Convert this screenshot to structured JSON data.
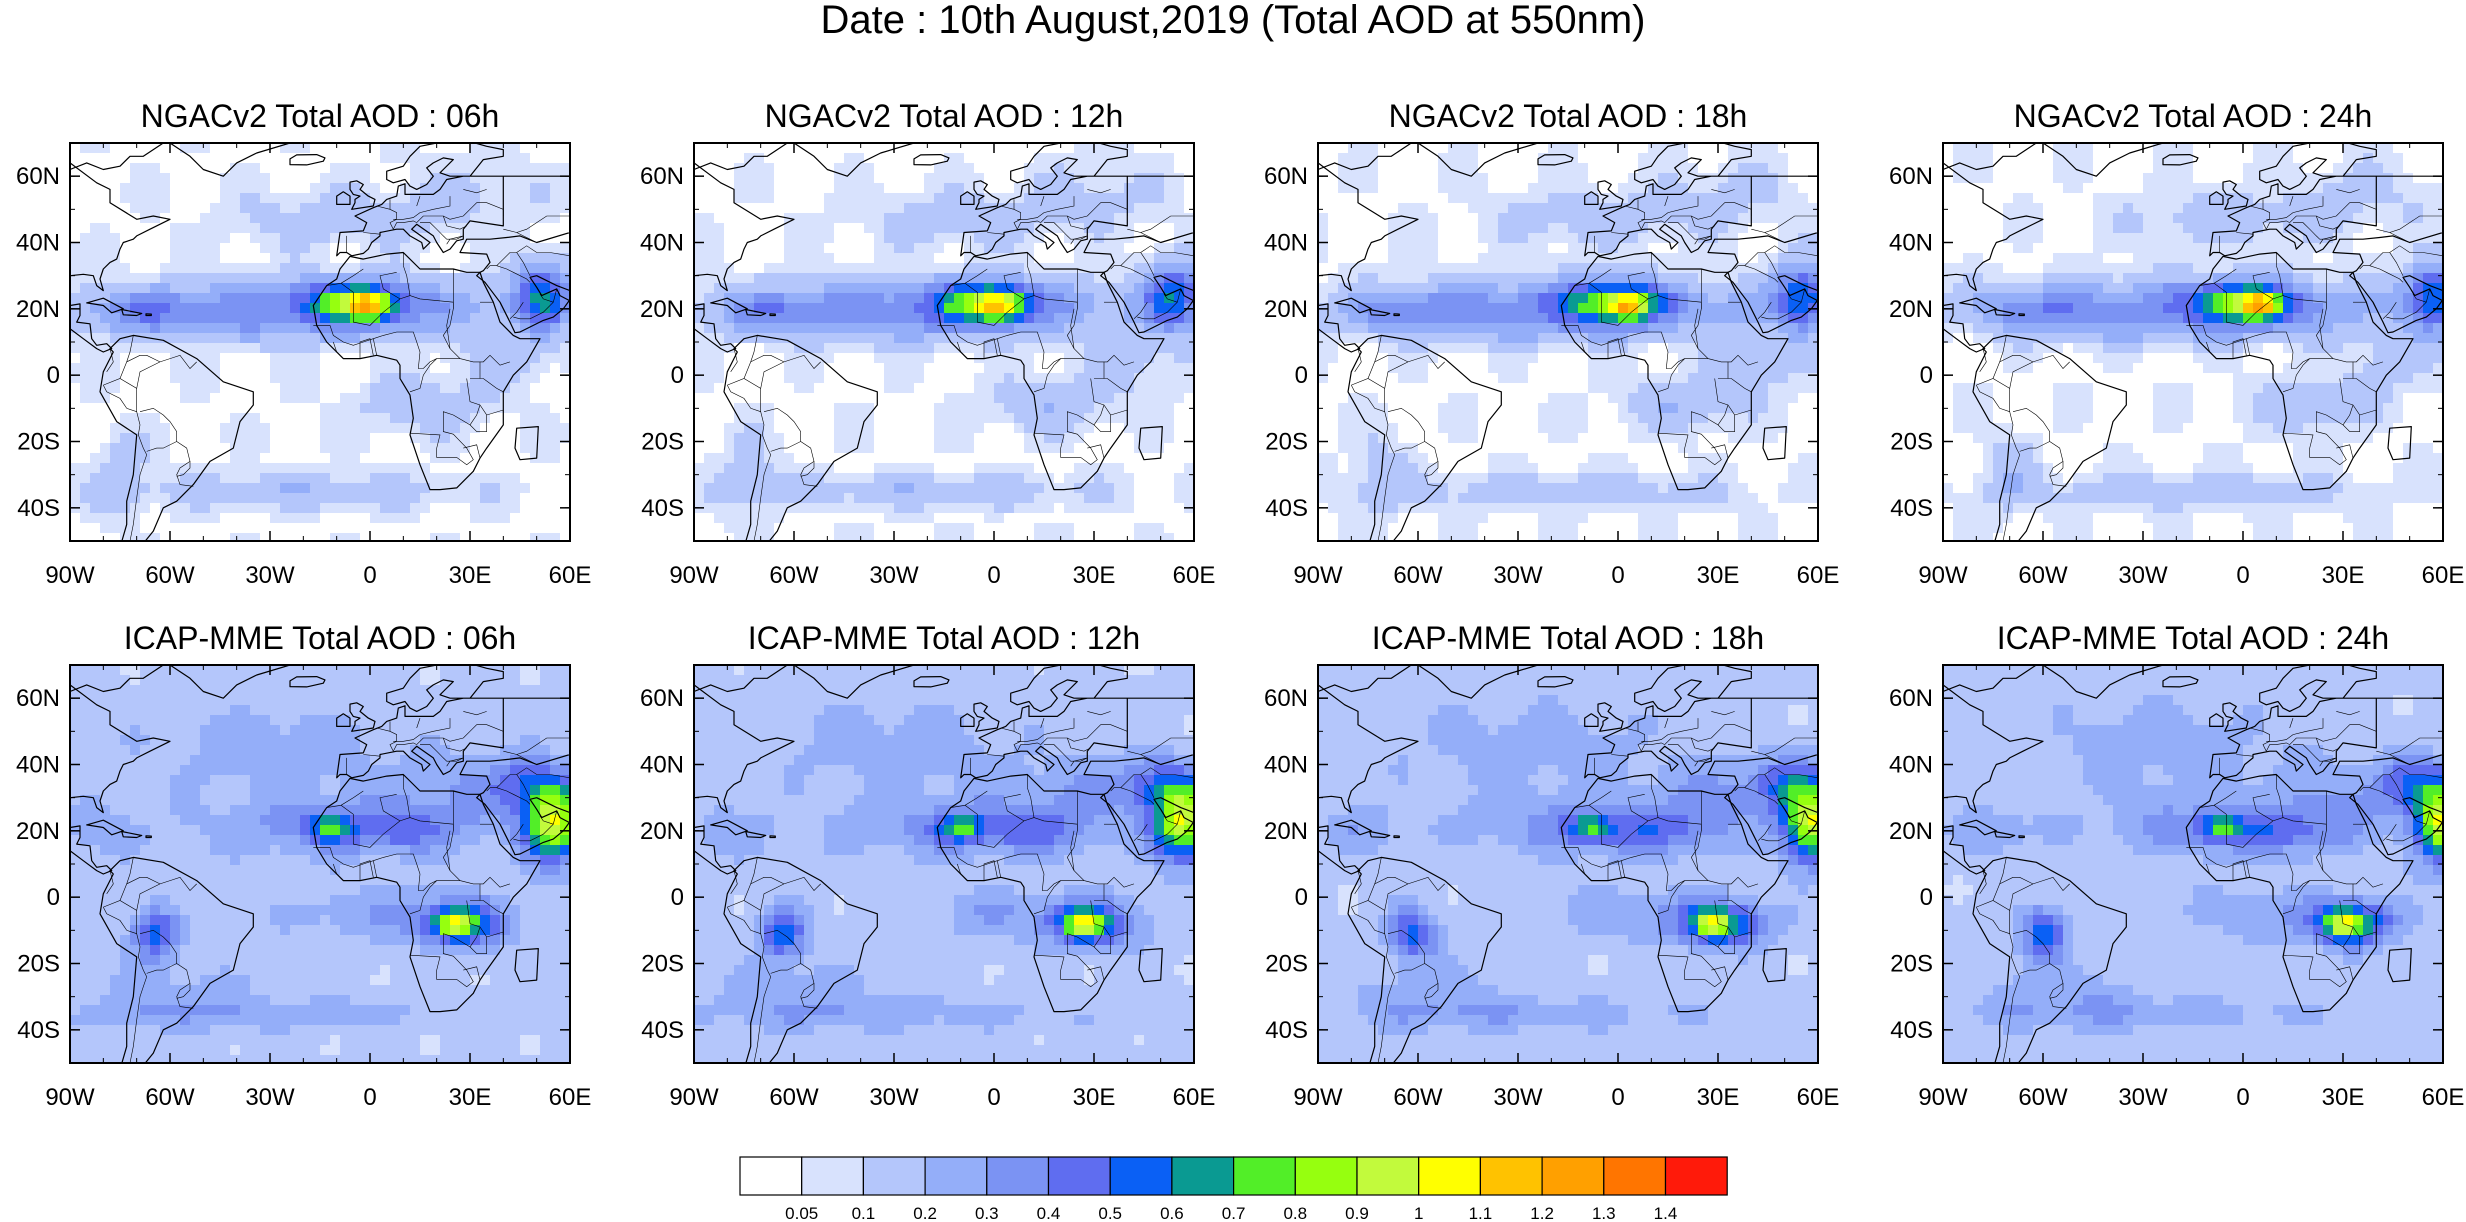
{
  "figure": {
    "title": "Date : 10th August,2019 (Total AOD at 550nm)"
  },
  "axes": {
    "lat_labels": [
      "60N",
      "40N",
      "20N",
      "0",
      "20S",
      "40S"
    ],
    "lon_labels": [
      "90W",
      "60W",
      "30W",
      "0",
      "30E",
      "60E"
    ],
    "lat_values": [
      60,
      40,
      20,
      0,
      -20,
      -40
    ],
    "lon_values": [
      -90,
      -60,
      -30,
      0,
      30,
      60
    ],
    "lat_range": [
      -50,
      70
    ],
    "lon_range": [
      -90,
      60
    ]
  },
  "panels": [
    {
      "title": "NGACv2 Total AOD : 06h",
      "model": "NGACv2"
    },
    {
      "title": "NGACv2 Total AOD : 12h",
      "model": "NGACv2"
    },
    {
      "title": "NGACv2 Total AOD : 18h",
      "model": "NGACv2"
    },
    {
      "title": "NGACv2 Total AOD : 24h",
      "model": "NGACv2"
    },
    {
      "title": "ICAP-MME Total AOD : 06h",
      "model": "ICAP-MME"
    },
    {
      "title": "ICAP-MME Total AOD : 12h",
      "model": "ICAP-MME"
    },
    {
      "title": "ICAP-MME Total AOD : 18h",
      "model": "ICAP-MME"
    },
    {
      "title": "ICAP-MME Total AOD : 24h",
      "model": "ICAP-MME"
    }
  ],
  "colorbar": {
    "colors": [
      "#ffffff",
      "#d8e2fd",
      "#b4c6fb",
      "#94aef9",
      "#7b93f3",
      "#5f6df0",
      "#0a60f5",
      "#0a9a92",
      "#52ee28",
      "#96ff0f",
      "#c2fa3c",
      "#ffff00",
      "#ffc200",
      "#ffa000",
      "#ff7500",
      "#ff1a0a"
    ],
    "labels": [
      "0.05",
      "0.1",
      "0.2",
      "0.3",
      "0.4",
      "0.5",
      "0.6",
      "0.7",
      "0.8",
      "0.9",
      "1",
      "1.1",
      "1.2",
      "1.3",
      "1.4"
    ]
  }
}
